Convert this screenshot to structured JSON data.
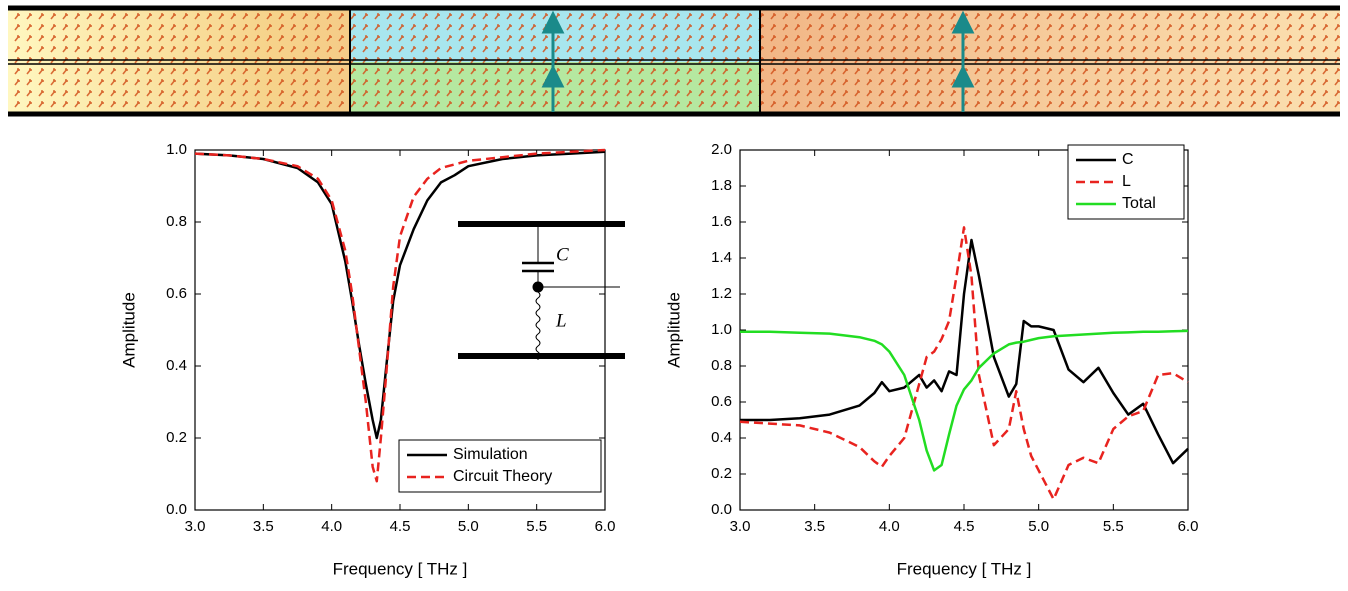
{
  "chart_data": [
    {
      "type": "line",
      "x": [
        3.0,
        3.25,
        3.5,
        3.75,
        3.9,
        4.0,
        4.1,
        4.15,
        4.2,
        4.25,
        4.3,
        4.33,
        4.36,
        4.4,
        4.45,
        4.5,
        4.6,
        4.7,
        4.8,
        4.9,
        5.0,
        5.25,
        5.5,
        5.75,
        6.0
      ],
      "series": [
        {
          "name": "Simulation",
          "color": "#000000",
          "dash": false,
          "values": [
            0.99,
            0.985,
            0.975,
            0.95,
            0.91,
            0.85,
            0.69,
            0.58,
            0.46,
            0.35,
            0.25,
            0.2,
            0.25,
            0.4,
            0.58,
            0.68,
            0.78,
            0.86,
            0.91,
            0.93,
            0.955,
            0.975,
            0.985,
            0.99,
            0.995
          ]
        },
        {
          "name": "Circuit Theory",
          "color": "#e8231f",
          "dash": true,
          "values": [
            0.99,
            0.985,
            0.975,
            0.955,
            0.92,
            0.86,
            0.72,
            0.6,
            0.45,
            0.3,
            0.12,
            0.08,
            0.2,
            0.38,
            0.62,
            0.76,
            0.87,
            0.92,
            0.95,
            0.96,
            0.97,
            0.98,
            0.99,
            0.995,
            1.0
          ]
        }
      ],
      "x_label": "Frequency [ THz ]",
      "y_label": "Amplitude",
      "xlim": [
        3.0,
        6.0
      ],
      "xticks": [
        {
          "value": 3,
          "label": "3.0"
        },
        {
          "value": 3.5,
          "label": "3.5"
        },
        {
          "value": 4,
          "label": "4.0"
        },
        {
          "value": 4.5,
          "label": "4.5"
        },
        {
          "value": 5,
          "label": "5.0"
        },
        {
          "value": 5.5,
          "label": "5.5"
        },
        {
          "value": 6,
          "label": "6.0"
        }
      ],
      "ylim": [
        0.0,
        1.0
      ],
      "yticks": [
        {
          "value": 0,
          "label": "0.0"
        },
        0.2,
        0.4,
        0.6,
        0.8,
        {
          "value": 1,
          "label": "1.0"
        }
      ],
      "legend": "lower right",
      "annotations": [
        "C",
        "L"
      ]
    },
    {
      "type": "line",
      "x": [
        3.0,
        3.2,
        3.4,
        3.6,
        3.8,
        3.9,
        3.95,
        4.0,
        4.1,
        4.2,
        4.25,
        4.3,
        4.35,
        4.4,
        4.45,
        4.5,
        4.55,
        4.6,
        4.7,
        4.8,
        4.85,
        4.9,
        4.95,
        5.0,
        5.1,
        5.2,
        5.3,
        5.4,
        5.5,
        5.6,
        5.7,
        5.8,
        5.9,
        6.0
      ],
      "series": [
        {
          "name": "C",
          "color": "#000000",
          "dash": false,
          "values": [
            0.5,
            0.5,
            0.51,
            0.53,
            0.58,
            0.65,
            0.71,
            0.66,
            0.68,
            0.75,
            0.68,
            0.72,
            0.66,
            0.77,
            0.75,
            1.2,
            1.5,
            1.3,
            0.85,
            0.63,
            0.7,
            1.05,
            1.02,
            1.02,
            1.0,
            0.78,
            0.71,
            0.79,
            0.65,
            0.53,
            0.59,
            0.42,
            0.26,
            0.34
          ]
        },
        {
          "name": "L",
          "color": "#e8231f",
          "dash": true,
          "values": [
            0.49,
            0.48,
            0.47,
            0.43,
            0.35,
            0.27,
            0.24,
            0.3,
            0.4,
            0.7,
            0.85,
            0.88,
            0.95,
            1.05,
            1.3,
            1.57,
            1.3,
            0.75,
            0.36,
            0.45,
            0.66,
            0.45,
            0.3,
            0.22,
            0.06,
            0.25,
            0.29,
            0.26,
            0.45,
            0.52,
            0.55,
            0.75,
            0.76,
            0.71
          ]
        },
        {
          "name": "Total",
          "color": "#22dd22",
          "dash": false,
          "values": [
            0.99,
            0.99,
            0.985,
            0.98,
            0.96,
            0.94,
            0.92,
            0.88,
            0.75,
            0.5,
            0.33,
            0.22,
            0.25,
            0.42,
            0.58,
            0.67,
            0.72,
            0.79,
            0.87,
            0.92,
            0.93,
            0.935,
            0.945,
            0.955,
            0.965,
            0.97,
            0.975,
            0.98,
            0.985,
            0.987,
            0.99,
            0.99,
            0.993,
            0.995
          ]
        }
      ],
      "x_label": "Frequency [ THz ]",
      "y_label": "Amplitude",
      "xlim": [
        3.0,
        6.0
      ],
      "xticks": [
        {
          "value": 3,
          "label": "3.0"
        },
        {
          "value": 3.5,
          "label": "3.5"
        },
        {
          "value": 4,
          "label": "4.0"
        },
        {
          "value": 4.5,
          "label": "4.5"
        },
        {
          "value": 5,
          "label": "5.0"
        },
        {
          "value": 5.5,
          "label": "5.5"
        },
        {
          "value": 6,
          "label": "6.0"
        }
      ],
      "ylim": [
        0.0,
        2.0
      ],
      "yticks": [
        {
          "value": 0,
          "label": "0.0"
        },
        0.2,
        0.4,
        0.6,
        0.8,
        {
          "value": 1,
          "label": "1.0"
        },
        1.2,
        1.4,
        1.6,
        1.8,
        {
          "value": 2,
          "label": "2.0"
        }
      ],
      "legend": "upper right"
    }
  ]
}
